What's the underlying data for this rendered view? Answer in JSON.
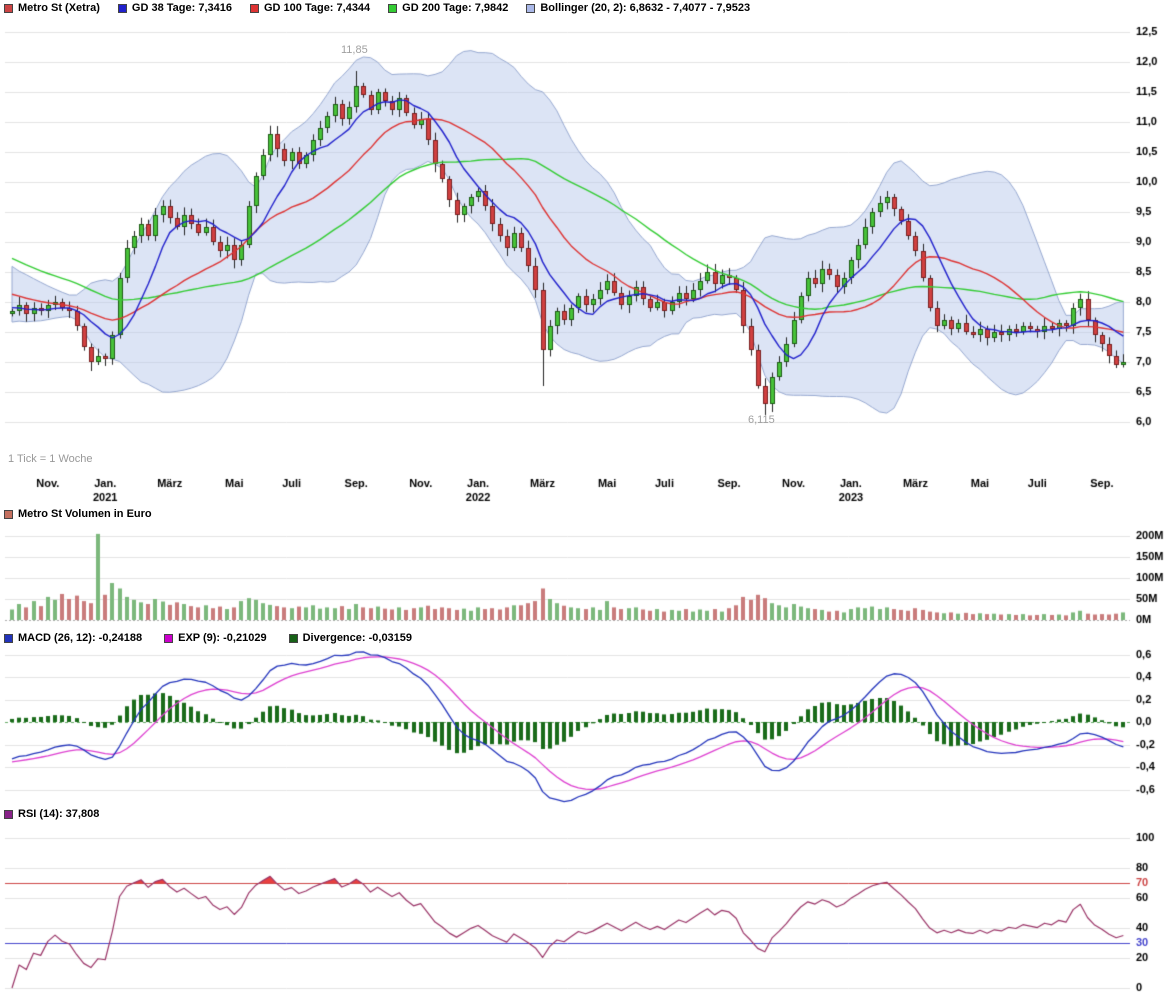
{
  "legends": {
    "price": [
      {
        "label": "Metro St (Xetra)",
        "color": "#cc4444"
      },
      {
        "label": "GD 38 Tage: 7,3416",
        "color": "#2020cc"
      },
      {
        "label": "GD 100 Tage: 7,4344",
        "color": "#dd3333"
      },
      {
        "label": "GD 200 Tage: 7,9842",
        "color": "#33cc33"
      },
      {
        "label": "Bollinger (20, 2): 6,8632 - 7,4077 - 7,9523",
        "color": "#aab8e8"
      }
    ],
    "volume": [
      {
        "label": "Metro St Volumen in Euro",
        "color": "#c4705f"
      }
    ],
    "macd": [
      {
        "label": "MACD (26, 12): -0,24188",
        "color": "#2233bb"
      },
      {
        "label": "EXP (9): -0,21029",
        "color": "#cc00cc"
      },
      {
        "label": "Divergence: -0,03159",
        "color": "#176117"
      }
    ],
    "rsi": [
      {
        "label": "RSI (14): 37,808",
        "color": "#882288"
      }
    ]
  },
  "notes": {
    "tick": "1 Tick = 1 Woche"
  },
  "annotations": {
    "high": "11,85",
    "low": "6,115"
  },
  "chart_data": [
    {
      "type": "candlestick",
      "title": "Metro St (Xetra)",
      "timeframe": "1 Tick = 1 Woche",
      "ylim": [
        6.0,
        12.5
      ],
      "tick_values": [
        12.5,
        12.0,
        11.5,
        11.0,
        10.5,
        10.0,
        9.5,
        9.0,
        8.5,
        8.0,
        7.5,
        7.0,
        6.5,
        6.0
      ],
      "tick_labels": [
        "12,5",
        "12,0",
        "11,5",
        "11,0",
        "10,5",
        "10,0",
        "9,5",
        "9,0",
        "8,5",
        "8,0",
        "7,5",
        "7,0",
        "6,5",
        "6,0"
      ],
      "x_labels": [
        {
          "label": "Nov.",
          "index": 5
        },
        {
          "label": "Jan.",
          "index": 13,
          "year": "2021"
        },
        {
          "label": "März",
          "index": 22
        },
        {
          "label": "Mai",
          "index": 31
        },
        {
          "label": "Juli",
          "index": 39
        },
        {
          "label": "Sep.",
          "index": 48
        },
        {
          "label": "Nov.",
          "index": 57
        },
        {
          "label": "Jan.",
          "index": 65,
          "year": "2022"
        },
        {
          "label": "März",
          "index": 74
        },
        {
          "label": "Mai",
          "index": 83
        },
        {
          "label": "Juli",
          "index": 91
        },
        {
          "label": "Sep.",
          "index": 100
        },
        {
          "label": "Nov.",
          "index": 109
        },
        {
          "label": "Jan.",
          "index": 117,
          "year": "2023"
        },
        {
          "label": "März",
          "index": 126
        },
        {
          "label": "Mai",
          "index": 135
        },
        {
          "label": "Juli",
          "index": 143
        },
        {
          "label": "Sep.",
          "index": 152
        }
      ],
      "first_open": 7.8,
      "closes": [
        7.85,
        7.95,
        7.8,
        7.9,
        7.85,
        7.95,
        8.0,
        7.9,
        7.85,
        7.6,
        7.25,
        7.0,
        7.1,
        7.05,
        7.45,
        8.4,
        8.9,
        9.1,
        9.3,
        9.1,
        9.45,
        9.6,
        9.4,
        9.25,
        9.45,
        9.3,
        9.15,
        9.25,
        9.0,
        8.85,
        8.95,
        8.7,
        8.95,
        9.6,
        10.1,
        10.45,
        10.8,
        10.55,
        10.35,
        10.5,
        10.3,
        10.45,
        10.7,
        10.9,
        11.1,
        11.3,
        11.05,
        11.25,
        11.6,
        11.45,
        11.2,
        11.5,
        11.35,
        11.2,
        11.4,
        11.15,
        10.95,
        11.05,
        10.7,
        10.3,
        10.05,
        9.7,
        9.45,
        9.6,
        9.75,
        9.85,
        9.6,
        9.3,
        9.1,
        8.9,
        9.15,
        8.9,
        8.6,
        8.2,
        7.2,
        7.6,
        7.85,
        7.7,
        7.9,
        8.1,
        7.95,
        8.05,
        8.2,
        8.35,
        8.15,
        7.95,
        8.1,
        8.25,
        8.05,
        7.9,
        8.0,
        7.85,
        8.0,
        8.15,
        8.05,
        8.2,
        8.35,
        8.5,
        8.3,
        8.45,
        8.4,
        8.2,
        7.6,
        7.2,
        6.6,
        6.3,
        6.75,
        7.0,
        7.3,
        7.7,
        8.1,
        8.4,
        8.3,
        8.55,
        8.45,
        8.25,
        8.4,
        8.7,
        8.95,
        9.25,
        9.5,
        9.65,
        9.75,
        9.55,
        9.35,
        9.1,
        8.85,
        8.4,
        7.9,
        7.6,
        7.7,
        7.55,
        7.65,
        7.5,
        7.45,
        7.55,
        7.4,
        7.5,
        7.45,
        7.55,
        7.5,
        7.6,
        7.55,
        7.5,
        7.6,
        7.55,
        7.65,
        7.6,
        7.9,
        8.05,
        7.7,
        7.45,
        7.3,
        7.1,
        6.95,
        7.0
      ],
      "warmup_closes": [
        10.2,
        10.1,
        10.0,
        9.9,
        9.8,
        9.7,
        9.6,
        9.5,
        9.45,
        9.4,
        9.35,
        9.3,
        9.25,
        9.2,
        9.1,
        9.0,
        8.9,
        8.8,
        8.75,
        8.7,
        8.65,
        8.6,
        8.5,
        8.45,
        8.4,
        8.35,
        8.3,
        8.25,
        8.2,
        8.15,
        8.1,
        8.05,
        8.0,
        8.0,
        7.95,
        7.95,
        7.9,
        7.9,
        7.85,
        7.85
      ],
      "special_wicks": {
        "11": {
          "low": 6.85
        },
        "48": {
          "high": 11.85
        },
        "74": {
          "low": 6.6
        },
        "105": {
          "low": 6.115
        },
        "122": {
          "high": 9.85
        }
      },
      "overlays": {
        "gd38": {
          "window": 8,
          "color": "#2020cc",
          "current": 7.3416
        },
        "gd100": {
          "window": 20,
          "color": "#dd3333",
          "current": 7.4344
        },
        "gd200": {
          "window": 40,
          "color": "#33cc33",
          "current": 7.9842
        }
      },
      "bollinger": {
        "window": 20,
        "mult": 2,
        "fill": "rgba(186,202,235,0.5)",
        "stroke": "#96a8d0",
        "current": [
          6.8632,
          7.4077,
          7.9523
        ]
      },
      "colors": {
        "up": "#47c239",
        "down": "#d04040",
        "up_border": "#1c5c14",
        "down_border": "#7a1f1f",
        "wick": "#222222"
      },
      "annotations": [
        {
          "text": "11,85",
          "index": 48,
          "price": 11.85
        },
        {
          "text": "6,115",
          "index": 105,
          "price": 6.115
        }
      ]
    },
    {
      "type": "bar",
      "title": "Metro St Volumen in Euro",
      "unit": "M",
      "ylim": [
        0,
        210
      ],
      "tick_values": [
        200,
        150,
        100,
        50,
        0
      ],
      "tick_labels": [
        "200M",
        "150M",
        "100M",
        "50M",
        "0M"
      ],
      "values": [
        25,
        38,
        30,
        45,
        33,
        55,
        48,
        62,
        50,
        58,
        45,
        40,
        205,
        60,
        88,
        75,
        55,
        48,
        42,
        38,
        50,
        44,
        36,
        42,
        38,
        33,
        30,
        35,
        28,
        32,
        26,
        30,
        45,
        52,
        48,
        40,
        36,
        33,
        30,
        28,
        32,
        30,
        35,
        27,
        30,
        28,
        33,
        26,
        38,
        30,
        28,
        32,
        27,
        25,
        30,
        24,
        28,
        30,
        34,
        26,
        30,
        28,
        24,
        27,
        22,
        30,
        26,
        28,
        25,
        30,
        35,
        35,
        40,
        45,
        75,
        50,
        40,
        34,
        30,
        28,
        26,
        30,
        24,
        45,
        30,
        26,
        28,
        30,
        25,
        22,
        26,
        20,
        24,
        22,
        26,
        20,
        25,
        22,
        26,
        20,
        28,
        35,
        55,
        48,
        60,
        52,
        40,
        35,
        30,
        38,
        32,
        28,
        26,
        24,
        20,
        22,
        18,
        26,
        30,
        28,
        32,
        26,
        30,
        26,
        24,
        22,
        28,
        24,
        20,
        18,
        16,
        18,
        15,
        17,
        14,
        16,
        14,
        15,
        13,
        14,
        12,
        14,
        11,
        12,
        14,
        12,
        13,
        11,
        18,
        22,
        15,
        13,
        14,
        13,
        15,
        18
      ],
      "colors": {
        "up": "#7cb87c",
        "down": "#c97c7c"
      }
    },
    {
      "type": "macd",
      "title": "MACD (26, 12)",
      "fast": 12,
      "slow": 26,
      "signal_period": 9,
      "current": {
        "macd": -0.24188,
        "signal": -0.21029,
        "divergence": -0.03159
      },
      "ylim": [
        -0.7,
        0.7
      ],
      "tick_values": [
        0.6,
        0.4,
        0.2,
        0,
        -0.2,
        -0.4,
        -0.6
      ],
      "tick_labels": [
        "0,6",
        "0,4",
        "0,2",
        "0,0",
        "-0,2",
        "-0,4",
        "-0,6"
      ],
      "colors": {
        "macd": "#2233bb",
        "signal": "#dd3fd0",
        "divergence": "#1a6b1a",
        "zero_line": "#66aa66"
      }
    },
    {
      "type": "rsi",
      "title": "RSI (14)",
      "period": 14,
      "current": 37.808,
      "ylim": [
        0,
        100
      ],
      "tick_values": [
        100,
        80,
        70,
        60,
        40,
        30,
        20,
        0
      ],
      "tick_labels": [
        "100",
        "80",
        "70",
        "60",
        "40",
        "30",
        "20",
        "0"
      ],
      "grid_values": [
        100,
        80,
        60,
        40,
        20,
        0
      ],
      "overbought": 70,
      "oversold": 30,
      "colors": {
        "line": "#993366",
        "overbought": "#cc4444",
        "oversold": "#4444cc",
        "fill_over": "#e84040"
      }
    }
  ]
}
